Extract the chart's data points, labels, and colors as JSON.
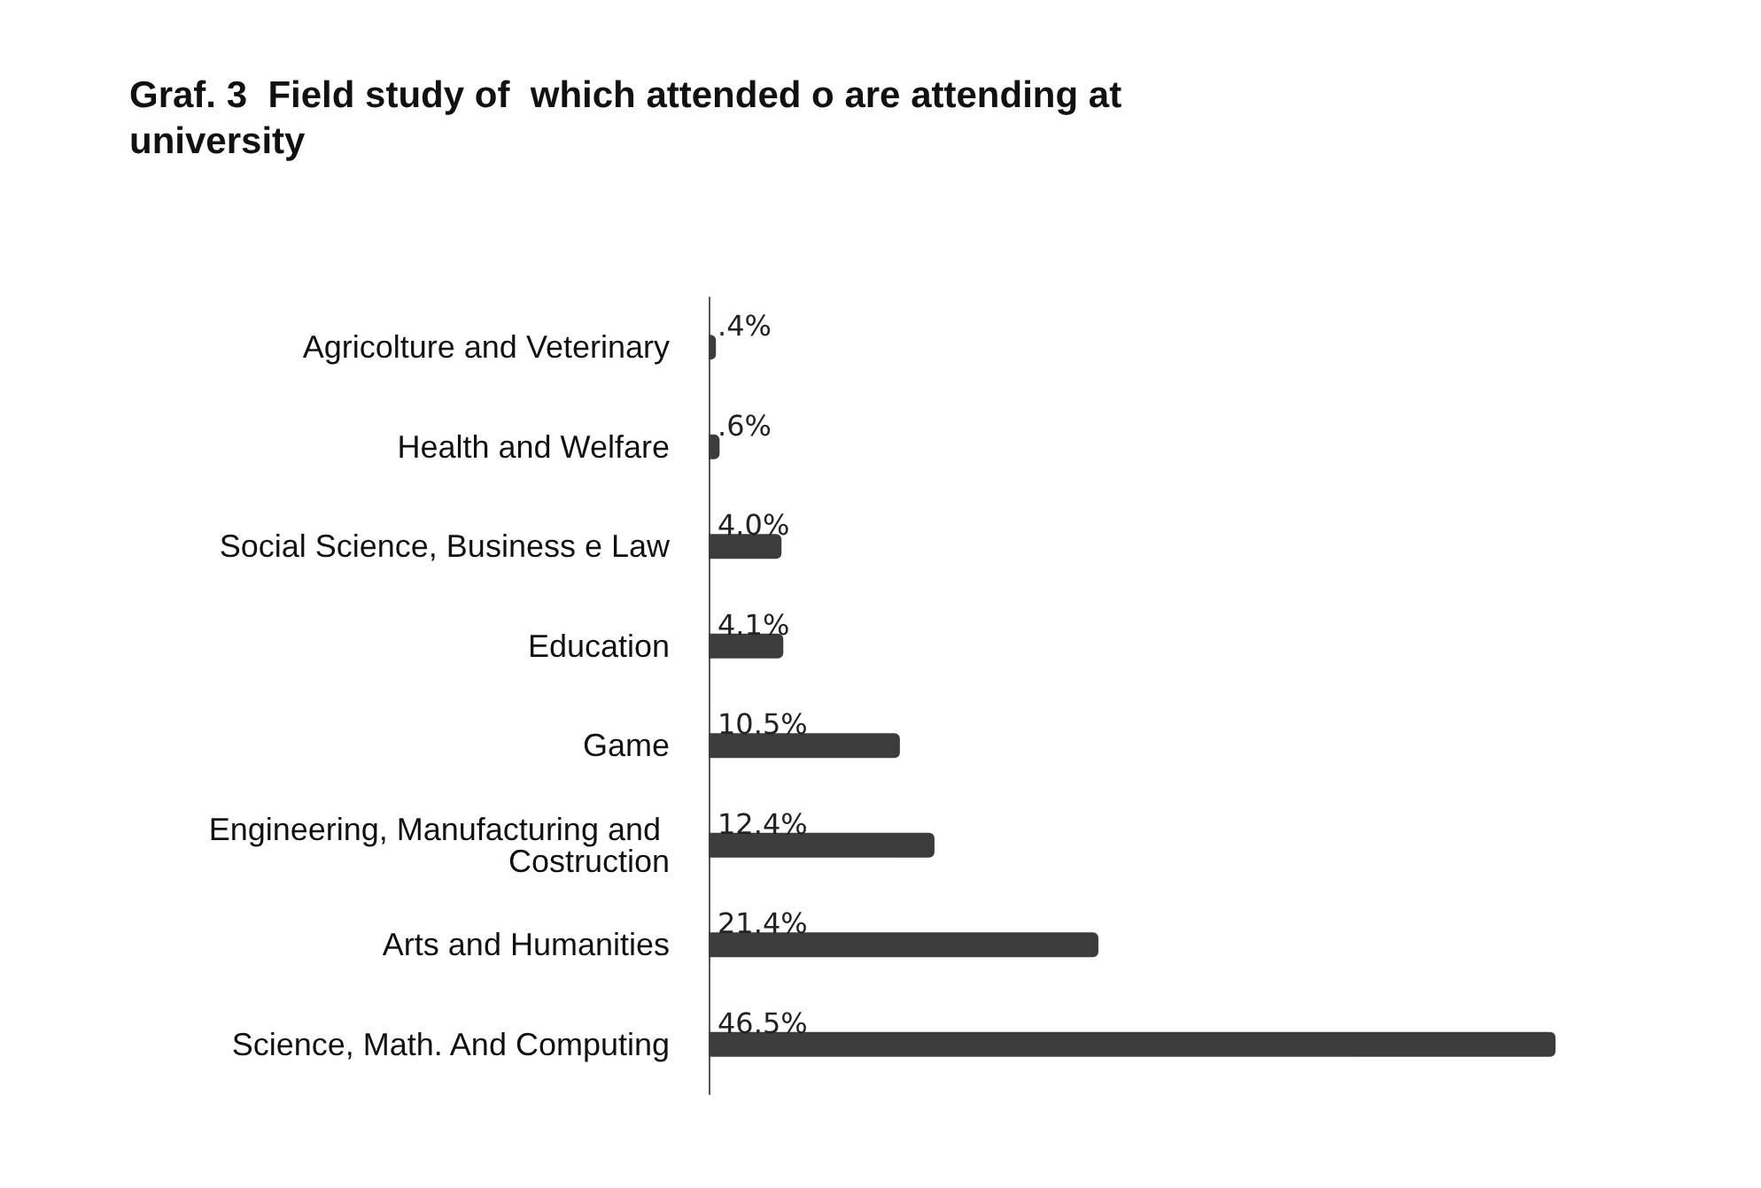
{
  "chart_data": {
    "type": "bar",
    "orientation": "horizontal",
    "title": "Graf. 3  Field study of  which attended o are attending at university",
    "categories": [
      "Agricolture and Veterinary",
      "Health and Welfare",
      "Social Science, Business e Law",
      "Education",
      "Game",
      "Engineering, Manufacturing and Costruction",
      "Arts and Humanities",
      "Science, Math. And Computing"
    ],
    "values": [
      0.4,
      0.6,
      4.0,
      4.1,
      10.5,
      12.4,
      21.4,
      46.5
    ],
    "value_labels": [
      ".4%",
      ".6%",
      "4.0%",
      "4.1%",
      "10.5%",
      "12.4%",
      "21.4%",
      "46.5%"
    ],
    "color": "#3c3c3c",
    "grid": false
  }
}
